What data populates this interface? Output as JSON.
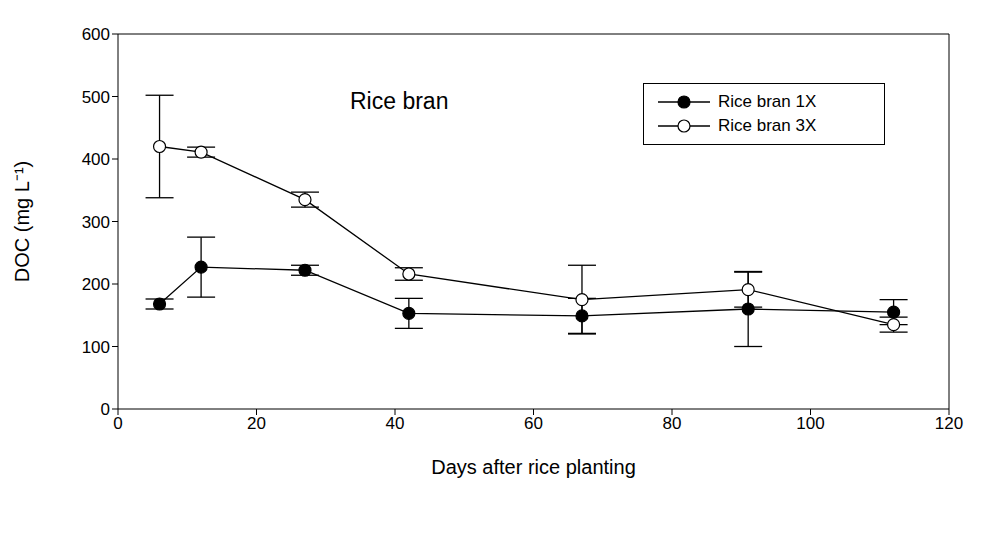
{
  "chart_data": {
    "type": "line",
    "title": "Rice bran",
    "x_label": "Days after rice planting",
    "y_label": "DOC (mg L⁻¹)",
    "x": [
      6,
      12,
      27,
      42,
      67,
      91,
      112
    ],
    "series": [
      {
        "name": "Rice bran 1X",
        "color": "#000000",
        "marker": "filled",
        "values": [
          168,
          227,
          222,
          153,
          149,
          160,
          155
        ],
        "errors": [
          8,
          48,
          8,
          24,
          28,
          60,
          20
        ]
      },
      {
        "name": "Rice bran 3X",
        "color": "#000000",
        "marker": "open",
        "values": [
          420,
          411,
          335,
          216,
          175,
          191,
          135
        ],
        "errors": [
          82,
          8,
          12,
          10,
          55,
          28,
          12
        ]
      }
    ],
    "xlim": [
      0,
      120
    ],
    "xticks": [
      0,
      20,
      40,
      60,
      80,
      100,
      120
    ],
    "ylim": [
      0,
      600
    ],
    "yticks": [
      0,
      100,
      200,
      300,
      400,
      500,
      600
    ],
    "legend": "top-right",
    "grid": false
  }
}
